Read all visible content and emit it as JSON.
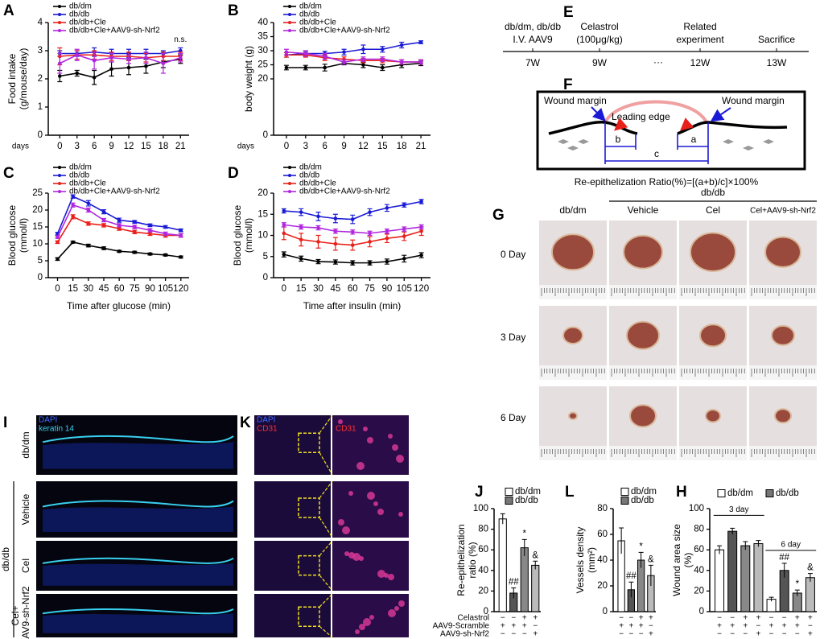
{
  "chart_data": [
    {
      "panel": "A",
      "type": "line",
      "ylabel": [
        "Food intake",
        "(g/mouse/day)"
      ],
      "xlabel": "days",
      "x": [
        0,
        3,
        6,
        9,
        12,
        15,
        18,
        21
      ],
      "xlim": [
        -2,
        22.5
      ],
      "xticks": [
        0,
        3,
        6,
        9,
        12,
        15,
        18,
        21
      ],
      "ylim": [
        0,
        4
      ],
      "yticks": [
        0,
        1,
        2,
        3,
        4
      ],
      "annotation": "n.s.",
      "series": [
        {
          "name": "db/dm",
          "color": "#000000",
          "values": [
            2.1,
            2.2,
            2.05,
            2.35,
            2.4,
            2.45,
            2.6,
            2.7
          ],
          "errors": [
            0.2,
            0.1,
            0.25,
            0.25,
            0.25,
            0.25,
            0.2,
            0.15
          ]
        },
        {
          "name": "db/db",
          "color": "#1a1ad6",
          "values": [
            2.9,
            2.9,
            2.95,
            2.9,
            2.9,
            2.9,
            2.9,
            3.0
          ],
          "errors": [
            0.1,
            0.1,
            0.15,
            0.15,
            0.15,
            0.15,
            0.1,
            0.1
          ]
        },
        {
          "name": "db/db+Cle",
          "color": "#e8201a",
          "values": [
            2.8,
            2.85,
            2.85,
            2.8,
            2.8,
            2.75,
            2.8,
            2.8
          ],
          "errors": [
            0.3,
            0.15,
            0.15,
            0.15,
            0.15,
            0.15,
            0.15,
            0.15
          ]
        },
        {
          "name": "db/db+Cle+AAV9-sh-Nrf2",
          "color": "#b026e0",
          "values": [
            2.55,
            2.85,
            2.65,
            2.75,
            2.7,
            2.75,
            2.55,
            2.75
          ],
          "errors": [
            0.35,
            0.2,
            0.3,
            0.15,
            0.15,
            0.2,
            0.35,
            0.15
          ]
        }
      ]
    },
    {
      "panel": "B",
      "type": "line",
      "ylabel": [
        "body weight (g)"
      ],
      "xlabel": "days",
      "x": [
        0,
        3,
        6,
        9,
        12,
        15,
        18,
        21
      ],
      "xlim": [
        -2,
        22.5
      ],
      "xticks": [
        0,
        3,
        6,
        9,
        12,
        15,
        18,
        21
      ],
      "ylim": [
        0,
        40
      ],
      "yticks": [
        0,
        20,
        25,
        30,
        35,
        40
      ],
      "series": [
        {
          "name": "db/dm",
          "color": "#000000",
          "values": [
            24,
            24,
            24,
            25.5,
            25,
            24,
            25,
            25.5
          ],
          "errors": [
            0.8,
            0.8,
            1.2,
            0.5,
            1,
            1,
            1,
            0.8
          ]
        },
        {
          "name": "db/db",
          "color": "#1a1ad6",
          "values": [
            28.5,
            29,
            29,
            29.5,
            30.5,
            30.5,
            32,
            33
          ],
          "errors": [
            0.8,
            0.8,
            0.8,
            1,
            1.5,
            1,
            1,
            0.5
          ]
        },
        {
          "name": "db/db+Cle",
          "color": "#e8201a",
          "values": [
            28.5,
            28.5,
            27.5,
            27,
            26.5,
            26.5,
            26,
            26
          ],
          "errors": [
            0.8,
            0.8,
            1,
            0.8,
            0.8,
            0.8,
            0.8,
            0.8
          ]
        },
        {
          "name": "db/db+Cle+AAV9-sh-Nrf2",
          "color": "#b026e0",
          "values": [
            29.5,
            29,
            28,
            26,
            27,
            27,
            26,
            26
          ],
          "errors": [
            1,
            1,
            1,
            0.8,
            0.8,
            0.8,
            0.8,
            0.8
          ]
        }
      ]
    },
    {
      "panel": "C",
      "type": "line",
      "ylabel": [
        "Blood glucose",
        "(mmol/l)"
      ],
      "xlabel": "Time after glucose (min)",
      "x": [
        0,
        15,
        30,
        45,
        60,
        75,
        90,
        105,
        120
      ],
      "xlim": [
        -9,
        128
      ],
      "xticks": [
        0,
        15,
        30,
        45,
        60,
        75,
        90,
        105,
        120
      ],
      "ylim": [
        0,
        25
      ],
      "yticks": [
        0,
        5,
        10,
        15,
        20,
        25
      ],
      "series": [
        {
          "name": "db/dm",
          "color": "#000000",
          "values": [
            5.5,
            10.5,
            9.5,
            8.7,
            7.8,
            7.5,
            7,
            6.7,
            6.1
          ],
          "errors": [
            0.4,
            0.3,
            0.4,
            0.4,
            0.3,
            0.3,
            0.3,
            0.3,
            0.3
          ]
        },
        {
          "name": "db/db",
          "color": "#1a1ad6",
          "values": [
            13,
            24,
            22,
            19.5,
            17,
            16.5,
            15.5,
            15,
            14
          ],
          "errors": [
            0.4,
            0.5,
            0.8,
            0.6,
            0.6,
            0.4,
            0.4,
            0.4,
            0.4
          ]
        },
        {
          "name": "db/db+Cle",
          "color": "#e8201a",
          "values": [
            10.5,
            18,
            16,
            15.5,
            14.5,
            13.5,
            13,
            12.5,
            12.5
          ],
          "errors": [
            0.4,
            0.6,
            0.5,
            0.5,
            0.5,
            0.5,
            0.5,
            0.5,
            0.5
          ]
        },
        {
          "name": "db/db+Cle+AAV9-sh-Nrf2",
          "color": "#b026e0",
          "values": [
            12,
            21.5,
            20,
            17,
            15.5,
            15,
            14,
            13,
            12.5
          ],
          "errors": [
            0.4,
            0.6,
            0.6,
            0.5,
            0.5,
            0.5,
            0.5,
            0.5,
            0.5
          ]
        }
      ]
    },
    {
      "panel": "D",
      "type": "line",
      "ylabel": [
        "Blood glucose",
        "(mmol/l)"
      ],
      "xlabel": "Time after insulin (min)",
      "x": [
        0,
        15,
        30,
        45,
        60,
        75,
        90,
        105,
        120
      ],
      "xlim": [
        -9,
        128
      ],
      "xticks": [
        0,
        15,
        30,
        45,
        60,
        75,
        90,
        105,
        120
      ],
      "ylim": [
        0,
        20
      ],
      "yticks": [
        0,
        5,
        10,
        15,
        20
      ],
      "series": [
        {
          "name": "db/dm",
          "color": "#000000",
          "values": [
            5.5,
            4.5,
            3.8,
            3.7,
            3.5,
            3.5,
            3.8,
            4.5,
            5.3
          ],
          "errors": [
            0.6,
            0.6,
            0.5,
            0.5,
            0.5,
            0.5,
            0.6,
            0.8,
            0.6
          ]
        },
        {
          "name": "db/db",
          "color": "#1a1ad6",
          "values": [
            15.8,
            15.5,
            14.5,
            14,
            13.8,
            15.5,
            16.5,
            17.2,
            18
          ],
          "errors": [
            0.5,
            0.8,
            1,
            1,
            1,
            0.8,
            0.8,
            0.5,
            0.5
          ]
        },
        {
          "name": "db/db+Cle",
          "color": "#e8201a",
          "values": [
            10.5,
            9,
            8.5,
            8,
            7.7,
            8.5,
            9.3,
            9.8,
            11
          ],
          "errors": [
            1.5,
            1.5,
            1.5,
            1.5,
            1.2,
            1.2,
            1,
            1,
            1
          ]
        },
        {
          "name": "db/db+Cle+AAV9-sh-Nrf2",
          "color": "#b026e0",
          "values": [
            12.5,
            12,
            11.8,
            11,
            10.8,
            10.5,
            11,
            11.5,
            12
          ],
          "errors": [
            0.5,
            0.5,
            0.5,
            0.5,
            0.5,
            0.5,
            0.5,
            0.5,
            0.5
          ]
        }
      ]
    },
    {
      "panel": "J",
      "type": "bar",
      "ylabel": [
        "Re-epithelization",
        "ratio (%)"
      ],
      "values": [
        90,
        18,
        62,
        45
      ],
      "errors": [
        5,
        5,
        8,
        4
      ],
      "colors": [
        "#ffffff",
        "#555555",
        "#888888",
        "#bbbbbb"
      ],
      "annotations": [
        null,
        "##",
        "*",
        "&"
      ],
      "ylim": [
        0,
        100
      ],
      "yticks": [
        0,
        20,
        40,
        60,
        80,
        100
      ],
      "legend": [
        {
          "name": "db/dm",
          "color": "#ffffff"
        },
        {
          "name": "db/db",
          "color": "#777777"
        }
      ],
      "conditions": [
        {
          "name": "Celastrol",
          "signs": [
            "−",
            "−",
            "+",
            "+"
          ]
        },
        {
          "name": "AAV9-Scramble",
          "signs": [
            "+",
            "+",
            "+",
            "−"
          ]
        },
        {
          "name": "AAV9-sh-Nrf2",
          "signs": [
            "−",
            "−",
            "−",
            "+"
          ]
        }
      ]
    },
    {
      "panel": "L",
      "type": "bar",
      "ylabel": [
        "Vessels density",
        "(mm²)"
      ],
      "values": [
        55,
        17,
        40,
        28
      ],
      "errors": [
        10,
        6,
        6,
        8
      ],
      "colors": [
        "#ffffff",
        "#555555",
        "#888888",
        "#bbbbbb"
      ],
      "annotations": [
        null,
        "##",
        "*",
        "&"
      ],
      "ylim": [
        0,
        80
      ],
      "yticks": [
        0,
        20,
        40,
        60,
        80
      ],
      "legend": [
        {
          "name": "db/dm",
          "color": "#ffffff"
        },
        {
          "name": "db/db",
          "color": "#777777"
        }
      ],
      "conditions": [
        [
          "−",
          "−",
          "+",
          "+"
        ],
        [
          "+",
          "+",
          "+",
          "−"
        ],
        [
          "−",
          "−",
          "−",
          "+"
        ]
      ]
    },
    {
      "panel": "H",
      "type": "bar",
      "ylabel": [
        "Wound area size",
        "(%)"
      ],
      "values": [
        60,
        78,
        64,
        66,
        12,
        40,
        18,
        33
      ],
      "errors": [
        4,
        3,
        4,
        3,
        2,
        7,
        3,
        4
      ],
      "colors": [
        "#ffffff",
        "#555555",
        "#888888",
        "#bbbbbb",
        "#ffffff",
        "#555555",
        "#888888",
        "#bbbbbb"
      ],
      "annotations": [
        null,
        null,
        null,
        null,
        null,
        "##",
        "*",
        "&"
      ],
      "ylim": [
        0,
        100
      ],
      "yticks": [
        0,
        20,
        40,
        60,
        80,
        100
      ],
      "groups": [
        "3 day",
        "6 day"
      ],
      "legend": [
        {
          "name": "db/dm",
          "color": "#ffffff"
        },
        {
          "name": "db/db",
          "color": "#777777"
        }
      ],
      "conditions": [
        [
          "−",
          "−",
          "+",
          "+",
          "−",
          "−",
          "+",
          "+"
        ],
        [
          "+",
          "+",
          "+",
          "−",
          "+",
          "+",
          "+",
          "−"
        ],
        [
          "−",
          "−",
          "−",
          "+",
          "−",
          "−",
          "−",
          "+"
        ]
      ]
    }
  ],
  "timeline": {
    "panel": "E",
    "ellipsis": "···",
    "events": [
      {
        "label": [
          "db/dm, db/db",
          "I.V. AAV9"
        ],
        "time": "7W"
      },
      {
        "label": [
          "Celastrol",
          "(100μg/kg)"
        ],
        "time": "9W"
      },
      {
        "label": [
          "Related",
          "experiment"
        ],
        "time": "12W"
      },
      {
        "label": [
          "Sacrifice"
        ],
        "time": "13W"
      }
    ]
  },
  "diagram": {
    "panel": "F",
    "left": "Wound margin",
    "right": "Wound margin",
    "center": "Leading edge",
    "a": "a",
    "b": "b",
    "c": "c",
    "formula": "Re-epithelization Ratio(%)=[(a+b)/c]×100%"
  },
  "photos": {
    "panel": "G",
    "group_left": "db/dm",
    "group": "db/db",
    "columns": [
      "Vehicle",
      "Cel",
      "Cel+AAV9-sh-Nrf2"
    ],
    "rows": [
      "0 Day",
      "3 Day",
      "6 Day"
    ]
  },
  "staining_i": {
    "panel": "I",
    "stains": [
      "DAPI",
      "keratin 14"
    ],
    "group": "db/db",
    "rows": [
      [
        "db/dm"
      ],
      [
        "Vehicle"
      ],
      [
        "Cel"
      ],
      [
        "Cel+",
        "AAV9-sh-Nrf2"
      ]
    ]
  },
  "staining_k": {
    "panel": "K",
    "stains": [
      "DAPI",
      "CD31"
    ],
    "zoom_stain": "CD31"
  }
}
